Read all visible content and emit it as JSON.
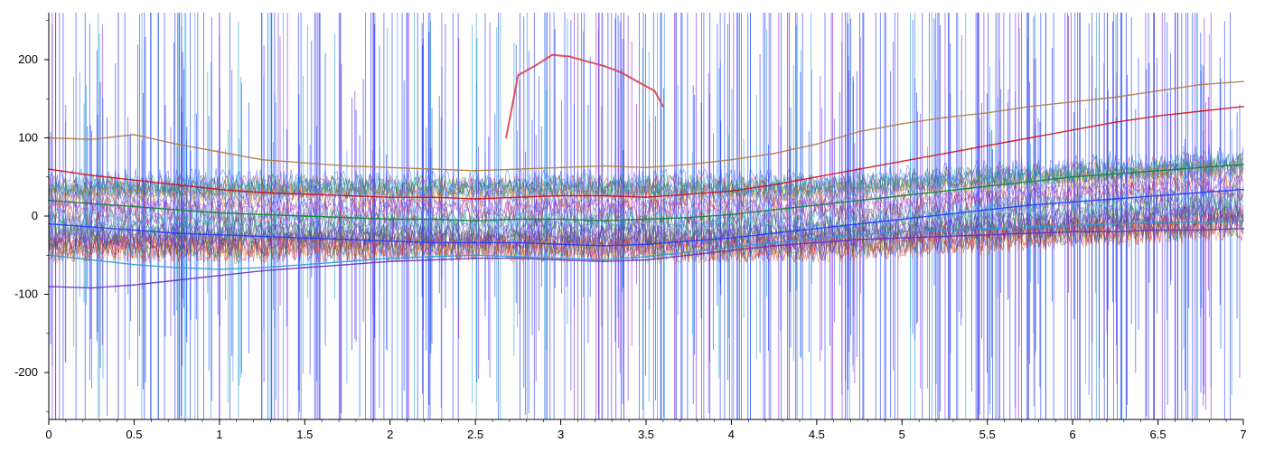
{
  "chart_data": {
    "type": "line",
    "title": "",
    "xlabel": "",
    "ylabel": "",
    "xlim": [
      0,
      7
    ],
    "ylim": [
      -260,
      260
    ],
    "grid": false,
    "legend": "none",
    "x_ticks": [
      0,
      0.5,
      1,
      1.5,
      2,
      2.5,
      3,
      3.5,
      4,
      4.5,
      5,
      5.5,
      6,
      6.5,
      7
    ],
    "x_tick_labels": [
      "0",
      "0.5",
      "1",
      "1.5",
      "2",
      "2.5",
      "3",
      "3.5",
      "4",
      "4.5",
      "5",
      "5.5",
      "6",
      "6.5",
      "7"
    ],
    "y_ticks": [
      200,
      100,
      0,
      -100,
      -200
    ],
    "y_tick_labels": [
      "200",
      "100",
      "0",
      "-100",
      "-200"
    ],
    "series_colors": [
      "#1f3fff",
      "#d01010",
      "#0a8a2a",
      "#2a9fd6",
      "#8a2be2",
      "#e07010",
      "#5050a0"
    ],
    "series": [
      {
        "x": [
          0,
          0.25,
          0.5,
          0.75,
          1,
          1.25,
          1.5,
          1.75,
          2,
          2.25,
          2.5,
          2.75,
          3,
          3.25,
          3.5,
          3.75,
          4,
          4.25,
          4.5,
          4.75,
          5,
          5.25,
          5.5,
          5.75,
          6,
          6.25,
          6.5,
          6.75,
          7
        ],
        "y": [
          100,
          98,
          104,
          92,
          82,
          72,
          68,
          64,
          62,
          60,
          58,
          60,
          62,
          64,
          62,
          66,
          72,
          80,
          92,
          108,
          118,
          126,
          132,
          140,
          146,
          152,
          160,
          168,
          172
        ]
      },
      {
        "x": [
          0,
          0.25,
          0.5,
          0.75,
          1,
          1.25,
          1.5,
          1.75,
          2,
          2.25,
          2.5,
          2.75,
          3,
          3.25,
          3.5,
          3.75,
          4,
          4.25,
          4.5,
          4.75,
          5,
          5.25,
          5.5,
          5.75,
          6,
          6.25,
          6.5,
          6.75,
          7
        ],
        "y": [
          60,
          52,
          46,
          40,
          34,
          30,
          28,
          26,
          24,
          24,
          22,
          24,
          26,
          26,
          24,
          28,
          32,
          40,
          50,
          60,
          70,
          80,
          90,
          100,
          110,
          120,
          128,
          134,
          140
        ]
      },
      {
        "x": [
          0,
          0.25,
          0.5,
          0.75,
          1,
          1.25,
          1.5,
          1.75,
          2,
          2.25,
          2.5,
          2.75,
          3,
          3.25,
          3.5,
          3.75,
          4,
          4.25,
          4.5,
          4.75,
          5,
          5.25,
          5.5,
          5.75,
          6,
          6.25,
          6.5,
          6.75,
          7
        ],
        "y": [
          20,
          16,
          12,
          8,
          4,
          2,
          0,
          -2,
          -4,
          -4,
          -6,
          -4,
          -4,
          -6,
          -4,
          -2,
          2,
          8,
          14,
          20,
          26,
          32,
          38,
          44,
          50,
          54,
          58,
          62,
          66
        ]
      },
      {
        "x": [
          0,
          0.25,
          0.5,
          0.75,
          1,
          1.25,
          1.5,
          1.75,
          2,
          2.25,
          2.5,
          2.75,
          3,
          3.25,
          3.5,
          3.75,
          4,
          4.25,
          4.5,
          4.75,
          5,
          5.25,
          5.5,
          5.75,
          6,
          6.25,
          6.5,
          6.75,
          7
        ],
        "y": [
          -10,
          -14,
          -18,
          -22,
          -24,
          -26,
          -28,
          -30,
          -32,
          -34,
          -34,
          -34,
          -36,
          -38,
          -36,
          -32,
          -28,
          -22,
          -16,
          -10,
          -4,
          2,
          8,
          14,
          18,
          22,
          26,
          30,
          34
        ]
      },
      {
        "x": [
          0,
          0.25,
          0.5,
          0.75,
          1,
          1.25,
          1.5,
          1.75,
          2,
          2.25,
          2.5,
          2.75,
          3,
          3.25,
          3.5,
          3.75,
          4,
          4.25,
          4.5,
          4.75,
          5,
          5.25,
          5.5,
          5.75,
          6,
          6.25,
          6.5,
          6.75,
          7
        ],
        "y": [
          -50,
          -56,
          -62,
          -66,
          -68,
          -66,
          -62,
          -58,
          -54,
          -52,
          -50,
          -52,
          -54,
          -56,
          -52,
          -46,
          -40,
          -34,
          -28,
          -24,
          -20,
          -18,
          -16,
          -14,
          -12,
          -10,
          -8,
          -8,
          -6
        ]
      },
      {
        "x": [
          0,
          0.25,
          0.5,
          0.75,
          1,
          1.25,
          1.5,
          1.75,
          2,
          2.25,
          2.5,
          2.75,
          3,
          3.25,
          3.5,
          3.75,
          4,
          4.25,
          4.5,
          4.75,
          5,
          5.25,
          5.5,
          5.75,
          6,
          6.25,
          6.5,
          6.75,
          7
        ],
        "y": [
          -90,
          -92,
          -88,
          -82,
          -76,
          -70,
          -66,
          -62,
          -58,
          -56,
          -54,
          -54,
          -56,
          -58,
          -56,
          -50,
          -44,
          -38,
          -34,
          -30,
          -28,
          -26,
          -24,
          -22,
          -20,
          -20,
          -18,
          -18,
          -16
        ]
      },
      {
        "x": [
          2.68,
          2.75,
          2.85,
          2.95,
          3.05,
          3.15,
          3.25,
          3.35,
          3.45,
          3.55,
          3.6
        ],
        "y": [
          100,
          180,
          192,
          206,
          204,
          198,
          192,
          184,
          172,
          160,
          140
        ]
      }
    ]
  }
}
